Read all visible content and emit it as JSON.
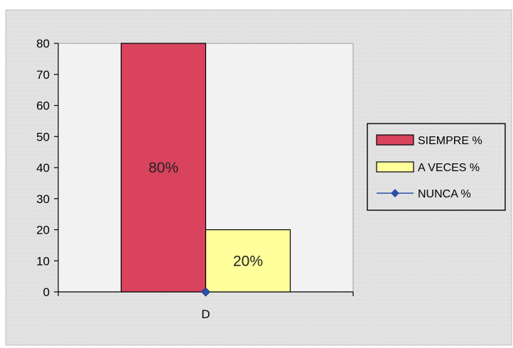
{
  "chart_data": {
    "type": "bar",
    "title": "",
    "xlabel": "",
    "ylabel": "",
    "categories": [
      "D"
    ],
    "ylim": [
      0,
      80
    ],
    "yticks": [
      "0",
      "10",
      "20",
      "30",
      "40",
      "50",
      "60",
      "70",
      "80"
    ],
    "series": [
      {
        "name": "SIEMPRE %",
        "values": [
          80
        ],
        "label": "80%",
        "color": "#d9435e",
        "mark": "bar"
      },
      {
        "name": "A VECES %",
        "values": [
          20
        ],
        "label": "20%",
        "color": "#ffff9c",
        "mark": "bar"
      },
      {
        "name": "NUNCA %",
        "values": [
          0
        ],
        "label": "",
        "color": "#2c4fa8",
        "mark": "line-marker"
      }
    ],
    "grid": false,
    "legend_position": "right",
    "plot_background": "#f2f2f2",
    "chart_background": "#e4e4e4"
  }
}
